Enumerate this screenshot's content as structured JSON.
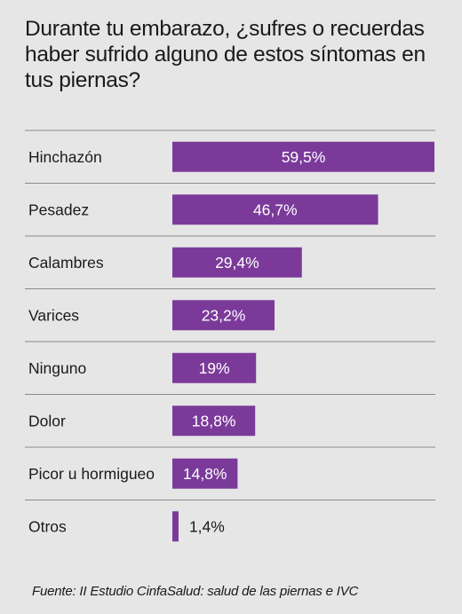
{
  "chart_data": {
    "type": "bar",
    "orientation": "horizontal",
    "title": "Durante tu embarazo, ¿sufres o recuerdas haber sufrido alguno de estos síntomas en tus piernas?",
    "categories": [
      "Hinchazón",
      "Pesadez",
      "Calambres",
      "Varices",
      "Ninguno",
      "Dolor",
      "Picor u hormigueo",
      "Otros"
    ],
    "values": [
      59.5,
      46.7,
      29.4,
      23.2,
      19,
      18.8,
      14.8,
      1.4
    ],
    "value_labels": [
      "59,5%",
      "46,7%",
      "29,4%",
      "23,2%",
      "19%",
      "18,8%",
      "14,8%",
      "1,4%"
    ],
    "xlim": [
      0,
      59.5
    ],
    "grid": false,
    "legend": "none",
    "bar_color": "#7b3a9a",
    "label_inside_color": "#ffffff",
    "label_outside_color": "#1a1a1a"
  },
  "source": "Fuente: II Estudio CinfaSalud: salud de las piernas e IVC"
}
